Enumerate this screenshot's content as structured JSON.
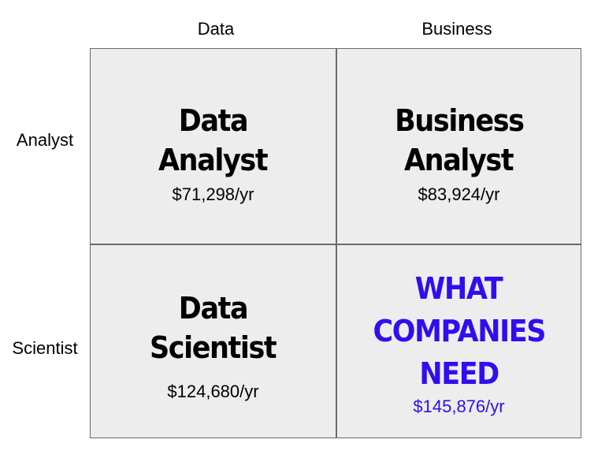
{
  "columns": [
    "Data",
    "Business"
  ],
  "rows": [
    "Analyst",
    "Scientist"
  ],
  "cells": {
    "data_analyst": {
      "title_line1": "Data",
      "title_line2": "Analyst",
      "salary": "$71,298/yr"
    },
    "business_analyst": {
      "title_line1": "Business",
      "title_line2": "Analyst",
      "salary": "$83,924/yr"
    },
    "data_scientist": {
      "title_line1": "Data",
      "title_line2": "Scientist",
      "salary": "$124,680/yr"
    },
    "what_companies_need": {
      "title_line1": "WHAT",
      "title_line2": "COMPANIES",
      "title_line3": "NEED",
      "salary": "$145,876/yr"
    }
  },
  "colors": {
    "accent": "#2f0ff0",
    "cell_background": "#ededed",
    "grid_line": "#6b6b6b"
  }
}
